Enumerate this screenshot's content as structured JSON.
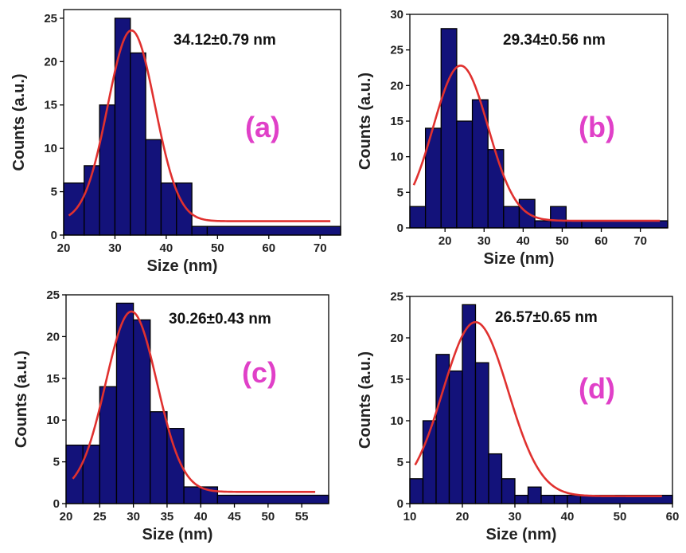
{
  "chart_data": [
    {
      "type": "bar",
      "panel": "a",
      "panel_label": "(a)",
      "annotation": "34.12±0.79 nm",
      "xlabel": "Size (nm)",
      "ylabel": "Counts (a.u.)",
      "xlim": [
        20,
        74
      ],
      "ylim": [
        0,
        26
      ],
      "xticks": [
        20,
        30,
        40,
        50,
        60,
        70
      ],
      "yticks": [
        0,
        5,
        10,
        15,
        20,
        25
      ],
      "bin_edges": [
        20,
        24,
        27,
        30,
        33,
        36,
        39,
        42,
        45,
        48,
        74
      ],
      "values": [
        6,
        8,
        15,
        25,
        21,
        11,
        6,
        6,
        1,
        1
      ],
      "fit": {
        "type": "gaussian",
        "center": 33.2,
        "sigma": 4.6,
        "amplitude": 22.0,
        "baseline": 1.6
      },
      "bar_color": "#13127a",
      "fit_color": "#e0312f"
    },
    {
      "type": "bar",
      "panel": "b",
      "panel_label": "(b)",
      "annotation": "29.34±0.56 nm",
      "xlabel": "Size (nm)",
      "ylabel": "Counts (a.u.)",
      "xlim": [
        11,
        77
      ],
      "ylim": [
        0,
        30
      ],
      "xticks": [
        20,
        30,
        40,
        50,
        60,
        70
      ],
      "yticks": [
        0,
        5,
        10,
        15,
        20,
        25,
        30
      ],
      "bin_edges": [
        11,
        15,
        19,
        23,
        27,
        31,
        35,
        39,
        43,
        47,
        51,
        55,
        77
      ],
      "values": [
        3,
        14,
        28,
        15,
        18,
        11,
        3,
        4,
        1,
        3,
        1,
        1
      ],
      "fit": {
        "type": "gaussian",
        "center": 24,
        "sigma": 7,
        "amplitude": 21.8,
        "baseline": 1.0
      },
      "bar_color": "#13127a",
      "fit_color": "#e0312f"
    },
    {
      "type": "bar",
      "panel": "c",
      "panel_label": "(c)",
      "annotation": "30.26±0.43 nm",
      "xlabel": "Size (nm)",
      "ylabel": "Counts (a.u.)",
      "xlim": [
        20,
        59
      ],
      "ylim": [
        0,
        25
      ],
      "xticks": [
        20,
        25,
        30,
        35,
        40,
        45,
        50,
        55
      ],
      "yticks": [
        0,
        5,
        10,
        15,
        20,
        25
      ],
      "bin_edges": [
        20,
        22.5,
        25,
        27.5,
        30,
        32.5,
        35,
        37.5,
        40,
        42.5,
        59
      ],
      "values": [
        7,
        7,
        14,
        24,
        22,
        11,
        9,
        2,
        2,
        1
      ],
      "fit": {
        "type": "gaussian",
        "center": 29.7,
        "sigma": 3.8,
        "amplitude": 21.6,
        "baseline": 1.4
      },
      "bar_color": "#13127a",
      "fit_color": "#e0312f"
    },
    {
      "type": "bar",
      "panel": "d",
      "panel_label": "(d)",
      "annotation": "26.57±0.65 nm",
      "xlabel": "Size (nm)",
      "ylabel": "Counts (a.u.)",
      "xlim": [
        10,
        60
      ],
      "ylim": [
        0,
        25
      ],
      "xticks": [
        10,
        20,
        30,
        40,
        50,
        60
      ],
      "yticks": [
        0,
        5,
        10,
        15,
        20,
        25
      ],
      "bin_edges": [
        10,
        12.5,
        15,
        17.5,
        20,
        22.5,
        25,
        27.5,
        30,
        32.5,
        35,
        37.5,
        40,
        42.5,
        60
      ],
      "values": [
        3,
        10,
        18,
        16,
        24,
        17,
        6,
        3,
        1,
        2,
        1,
        1,
        1,
        1
      ],
      "fit": {
        "type": "gaussian",
        "center": 22.5,
        "sigma": 6.2,
        "amplitude": 21.0,
        "baseline": 0.9
      },
      "bar_color": "#13127a",
      "fit_color": "#e0312f"
    }
  ]
}
